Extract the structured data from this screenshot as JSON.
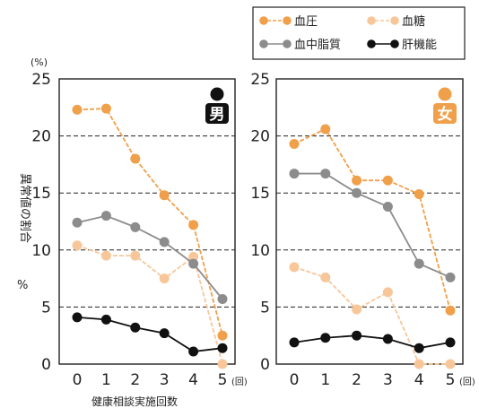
{
  "chart_data": {
    "type": "line",
    "shared": {
      "ylabel": "異常値の割合",
      "yunit": "%",
      "yunit_label": "(%)",
      "xlabel": "健康相談実施回数",
      "xunit": "(回)",
      "ylim": [
        0,
        25
      ],
      "yticks": [
        0,
        5,
        10,
        15,
        20,
        25
      ],
      "x": [
        0,
        1,
        2,
        3,
        4,
        5
      ],
      "grid": "dashed horizontal",
      "legend_position": "top-right"
    },
    "legend": [
      {
        "key": "bp",
        "label": "血圧",
        "color": "#f0a04a",
        "dash": true
      },
      {
        "key": "sugar",
        "label": "血糖",
        "color": "#f7c79a",
        "dash": true
      },
      {
        "key": "lipid",
        "label": "血中脂質",
        "color": "#8c8c8c",
        "dash": false
      },
      {
        "key": "liver",
        "label": "肝機能",
        "color": "#111111",
        "dash": false
      }
    ],
    "panels": [
      {
        "badge": "男",
        "badge_color": "#111111",
        "series": [
          {
            "key": "bp",
            "values": [
              22.3,
              22.4,
              18.0,
              14.8,
              12.2,
              2.5
            ]
          },
          {
            "key": "sugar",
            "values": [
              10.4,
              9.5,
              9.5,
              7.5,
              9.4,
              0
            ]
          },
          {
            "key": "lipid",
            "values": [
              12.4,
              13.0,
              12.0,
              10.7,
              8.8,
              5.7
            ]
          },
          {
            "key": "liver",
            "values": [
              4.1,
              3.9,
              3.2,
              2.7,
              1.1,
              1.4
            ]
          }
        ]
      },
      {
        "badge": "女",
        "badge_color": "#f0a04a",
        "series": [
          {
            "key": "bp",
            "values": [
              19.3,
              20.6,
              16.1,
              16.1,
              14.9,
              4.7
            ]
          },
          {
            "key": "sugar",
            "values": [
              8.5,
              7.6,
              4.8,
              6.3,
              0,
              0
            ]
          },
          {
            "key": "lipid",
            "values": [
              16.7,
              16.7,
              15.0,
              13.8,
              8.8,
              7.6
            ]
          },
          {
            "key": "liver",
            "values": [
              1.9,
              2.3,
              2.5,
              2.2,
              1.4,
              1.9
            ]
          }
        ]
      }
    ]
  }
}
